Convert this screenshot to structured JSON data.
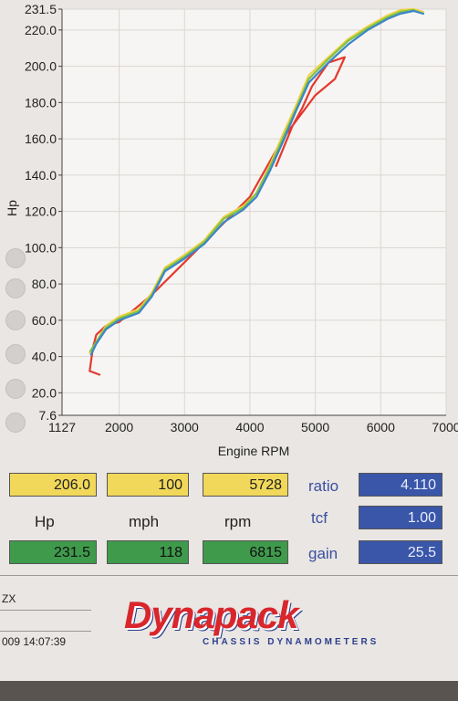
{
  "chart_data": {
    "type": "line",
    "xlabel": "Engine RPM",
    "ylabel": "Hp",
    "x_ticks": [
      1127,
      2000,
      3000,
      4000,
      5000,
      6000,
      7000
    ],
    "y_ticks": [
      7.6,
      20.0,
      40.0,
      60.0,
      80.0,
      100.0,
      120.0,
      140.0,
      160.0,
      180.0,
      200.0,
      220.0,
      231.5
    ],
    "x_tick_labels": [
      "1127",
      "2000",
      "3000",
      "4000",
      "5000",
      "6000",
      "7000"
    ],
    "y_tick_labels": [
      "7.6",
      "20.0",
      "40.0",
      "60.0",
      "80.0",
      "100.0",
      "120.0",
      "140.0",
      "160.0",
      "180.0",
      "200.0",
      "220.0",
      "231.5"
    ],
    "xlim": [
      1127,
      7000
    ],
    "ylim": [
      7.6,
      231.5
    ],
    "grid": true,
    "series": [
      {
        "color": "#e33a2e",
        "x": [
          1700,
          1550,
          1600,
          1650,
          1800,
          2000,
          2500,
          3000,
          3500,
          4000,
          4500,
          5000,
          5300,
          5450,
          5200,
          4950,
          4800,
          4650,
          4400
        ],
        "y": [
          30,
          32,
          45,
          52,
          57,
          59,
          74,
          92,
          110,
          128,
          160,
          184,
          193,
          205,
          202,
          189,
          177,
          167,
          145
        ]
      },
      {
        "color": "#efd240",
        "x": [
          1550,
          1650,
          1800,
          2000,
          2300,
          2500,
          2700,
          3000,
          3300,
          3600,
          3900,
          4100,
          4300,
          4500,
          4700,
          4900,
          5200,
          5500,
          5800,
          6100,
          6300,
          6500,
          6650
        ],
        "y": [
          42,
          48,
          57,
          62,
          66,
          75,
          89,
          96,
          104,
          117,
          123,
          130,
          145,
          162,
          178,
          195,
          205,
          215,
          222,
          228,
          231,
          231.5,
          230
        ]
      },
      {
        "color": "#7cc24b",
        "x": [
          1560,
          1650,
          1800,
          2000,
          2300,
          2500,
          2700,
          3000,
          3300,
          3600,
          3900,
          4100,
          4300,
          4500,
          4700,
          4900,
          5200,
          5500,
          5800,
          6100,
          6300,
          6500,
          6650
        ],
        "y": [
          43,
          48,
          56,
          61,
          65,
          74,
          88,
          95,
          103,
          116,
          122,
          130,
          144,
          160,
          176,
          193,
          204,
          214,
          221,
          227,
          230,
          231,
          229
        ]
      },
      {
        "color": "#3c84c8",
        "x": [
          1570,
          1650,
          1800,
          2000,
          2300,
          2500,
          2700,
          3000,
          3300,
          3600,
          3900,
          4100,
          4300,
          4500,
          4700,
          4900,
          5200,
          5500,
          5800,
          6100,
          6300,
          6500,
          6650
        ],
        "y": [
          41,
          47,
          55,
          60,
          64,
          73,
          87,
          94,
          102,
          114,
          121,
          128,
          142,
          158,
          175,
          191,
          202,
          212,
          220,
          226,
          229,
          230.5,
          229
        ]
      }
    ]
  },
  "readouts": {
    "row1": {
      "hp": "206.0",
      "mph": "100",
      "rpm": "5728",
      "ratio_label": "ratio",
      "ratio": "4.110"
    },
    "row2": {
      "hp_label": "Hp",
      "mph_label": "mph",
      "rpm_label": "rpm",
      "tcf_label": "tcf",
      "tcf": "1.00"
    },
    "row3": {
      "hp": "231.5",
      "mph": "118",
      "rpm": "6815",
      "gain_label": "gain",
      "gain": "25.5"
    }
  },
  "footer": {
    "line1": "ZX",
    "line2": "009  14:07:39",
    "logo": "Dynapack",
    "logo_sub": "CHASSIS  DYNAMOMETERS"
  },
  "colors": {
    "yellow_box": "#f1d85a",
    "green_box": "#3f9a4c",
    "blue_box": "#3a56a8",
    "brand_red": "#d8262c",
    "brand_blue": "#2d3f8e"
  }
}
